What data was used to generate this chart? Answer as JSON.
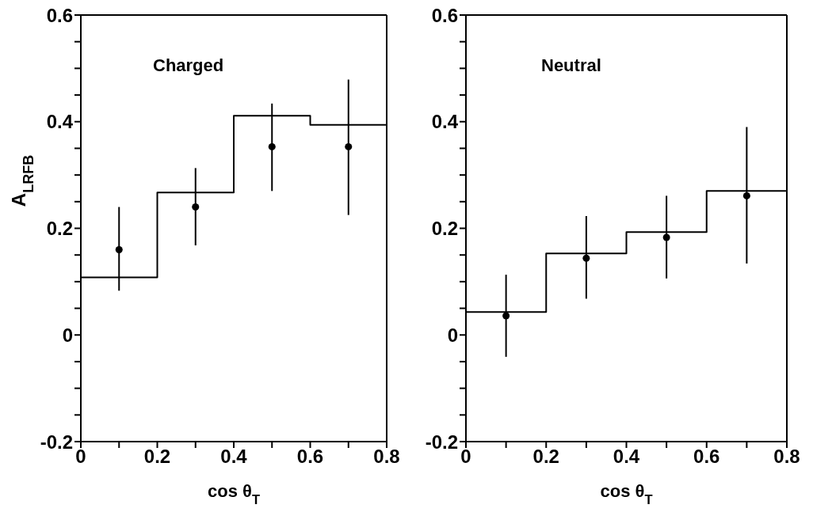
{
  "chart_data": [
    {
      "type": "step",
      "xlabel": "cos θ$_{T}$",
      "ylabel": "A$_{LRFB}$",
      "annotations": [
        "Charged"
      ],
      "xlim": [
        0,
        0.8
      ],
      "ylim": [
        -0.2,
        0.6
      ],
      "xticks": [
        0,
        {
          "value": 0.1,
          "label": null
        },
        0.2,
        {
          "value": 0.3,
          "label": null
        },
        0.4,
        {
          "value": 0.5,
          "label": null
        },
        0.6,
        {
          "value": 0.7,
          "label": null
        },
        0.8
      ],
      "yticks": [
        -0.2,
        {
          "value": -0.15,
          "label": null
        },
        {
          "value": -0.1,
          "label": null
        },
        {
          "value": -0.05,
          "label": null
        },
        0,
        {
          "value": 0.05,
          "label": null
        },
        {
          "value": 0.1,
          "label": null
        },
        {
          "value": 0.15,
          "label": null
        },
        0.2,
        {
          "value": 0.25,
          "label": null
        },
        {
          "value": 0.3,
          "label": null
        },
        {
          "value": 0.35,
          "label": null
        },
        0.4,
        {
          "value": 0.45,
          "label": null
        },
        {
          "value": 0.5,
          "label": null
        },
        {
          "value": 0.55,
          "label": null
        },
        0.6
      ],
      "series": [
        {
          "color": "#000000",
          "x": [
            0,
            0.2,
            0.4,
            0.6,
            0.8
          ],
          "values": [
            0.108,
            0.267,
            0.411,
            0.394,
            0.394
          ]
        },
        {
          "type": "scatter",
          "marker": "circle",
          "color": "#000000",
          "x": [
            0.1,
            0.3,
            0.5,
            0.7
          ],
          "values": [
            0.16,
            0.24,
            0.353,
            0.353
          ],
          "errors": [
            [
              0.083,
              0.24
            ],
            [
              0.168,
              0.313
            ],
            [
              0.27,
              0.434
            ],
            [
              0.225,
              0.479
            ]
          ]
        }
      ]
    },
    {
      "type": "step",
      "xlabel": "cos θ$_{T}$",
      "annotations": [
        "Neutral"
      ],
      "xlim": [
        0,
        0.8
      ],
      "ylim": [
        -0.2,
        0.6
      ],
      "xticks": [
        0,
        {
          "value": 0.1,
          "label": null
        },
        0.2,
        {
          "value": 0.3,
          "label": null
        },
        0.4,
        {
          "value": 0.5,
          "label": null
        },
        0.6,
        {
          "value": 0.7,
          "label": null
        },
        0.8
      ],
      "yticks": [
        -0.2,
        {
          "value": -0.15,
          "label": null
        },
        {
          "value": -0.1,
          "label": null
        },
        {
          "value": -0.05,
          "label": null
        },
        0,
        {
          "value": 0.05,
          "label": null
        },
        {
          "value": 0.1,
          "label": null
        },
        {
          "value": 0.15,
          "label": null
        },
        0.2,
        {
          "value": 0.25,
          "label": null
        },
        {
          "value": 0.3,
          "label": null
        },
        {
          "value": 0.35,
          "label": null
        },
        0.4,
        {
          "value": 0.45,
          "label": null
        },
        {
          "value": 0.5,
          "label": null
        },
        {
          "value": 0.55,
          "label": null
        },
        0.6
      ],
      "series": [
        {
          "color": "#000000",
          "x": [
            0,
            0.2,
            0.4,
            0.6,
            0.8
          ],
          "values": [
            0.043,
            0.153,
            0.193,
            0.27,
            0.27
          ]
        },
        {
          "type": "scatter",
          "marker": "circle",
          "color": "#000000",
          "x": [
            0.1,
            0.3,
            0.5,
            0.7
          ],
          "values": [
            0.036,
            0.144,
            0.183,
            0.261
          ],
          "errors": [
            [
              -0.041,
              0.113
            ],
            [
              0.068,
              0.223
            ],
            [
              0.106,
              0.261
            ],
            [
              0.134,
              0.39
            ]
          ]
        }
      ]
    }
  ]
}
